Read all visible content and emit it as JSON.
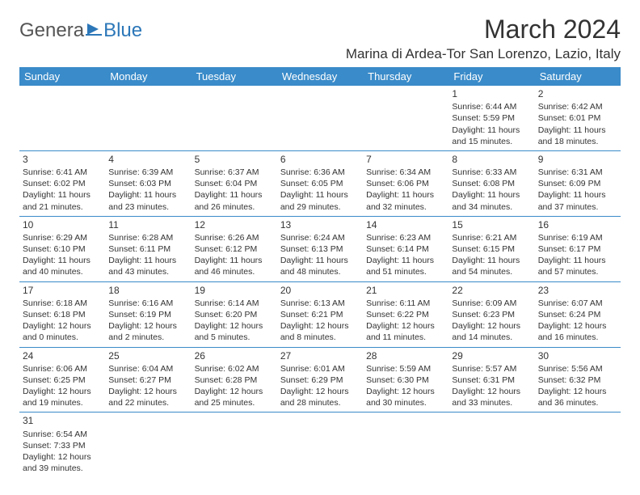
{
  "logo": {
    "general": "Genera",
    "blue": "Blue"
  },
  "title": "March 2024",
  "location": "Marina di Ardea-Tor San Lorenzo, Lazio, Italy",
  "colors": {
    "header_bg": "#3a8bc9",
    "header_text": "#ffffff",
    "border": "#3a8bc9",
    "logo_gray": "#555555",
    "logo_blue": "#2c77b8"
  },
  "weekdays": [
    "Sunday",
    "Monday",
    "Tuesday",
    "Wednesday",
    "Thursday",
    "Friday",
    "Saturday"
  ],
  "weeks": [
    [
      null,
      null,
      null,
      null,
      null,
      {
        "n": "1",
        "sr": "6:44 AM",
        "ss": "5:59 PM",
        "dl": "11 hours and 15 minutes."
      },
      {
        "n": "2",
        "sr": "6:42 AM",
        "ss": "6:01 PM",
        "dl": "11 hours and 18 minutes."
      }
    ],
    [
      {
        "n": "3",
        "sr": "6:41 AM",
        "ss": "6:02 PM",
        "dl": "11 hours and 21 minutes."
      },
      {
        "n": "4",
        "sr": "6:39 AM",
        "ss": "6:03 PM",
        "dl": "11 hours and 23 minutes."
      },
      {
        "n": "5",
        "sr": "6:37 AM",
        "ss": "6:04 PM",
        "dl": "11 hours and 26 minutes."
      },
      {
        "n": "6",
        "sr": "6:36 AM",
        "ss": "6:05 PM",
        "dl": "11 hours and 29 minutes."
      },
      {
        "n": "7",
        "sr": "6:34 AM",
        "ss": "6:06 PM",
        "dl": "11 hours and 32 minutes."
      },
      {
        "n": "8",
        "sr": "6:33 AM",
        "ss": "6:08 PM",
        "dl": "11 hours and 34 minutes."
      },
      {
        "n": "9",
        "sr": "6:31 AM",
        "ss": "6:09 PM",
        "dl": "11 hours and 37 minutes."
      }
    ],
    [
      {
        "n": "10",
        "sr": "6:29 AM",
        "ss": "6:10 PM",
        "dl": "11 hours and 40 minutes."
      },
      {
        "n": "11",
        "sr": "6:28 AM",
        "ss": "6:11 PM",
        "dl": "11 hours and 43 minutes."
      },
      {
        "n": "12",
        "sr": "6:26 AM",
        "ss": "6:12 PM",
        "dl": "11 hours and 46 minutes."
      },
      {
        "n": "13",
        "sr": "6:24 AM",
        "ss": "6:13 PM",
        "dl": "11 hours and 48 minutes."
      },
      {
        "n": "14",
        "sr": "6:23 AM",
        "ss": "6:14 PM",
        "dl": "11 hours and 51 minutes."
      },
      {
        "n": "15",
        "sr": "6:21 AM",
        "ss": "6:15 PM",
        "dl": "11 hours and 54 minutes."
      },
      {
        "n": "16",
        "sr": "6:19 AM",
        "ss": "6:17 PM",
        "dl": "11 hours and 57 minutes."
      }
    ],
    [
      {
        "n": "17",
        "sr": "6:18 AM",
        "ss": "6:18 PM",
        "dl": "12 hours and 0 minutes."
      },
      {
        "n": "18",
        "sr": "6:16 AM",
        "ss": "6:19 PM",
        "dl": "12 hours and 2 minutes."
      },
      {
        "n": "19",
        "sr": "6:14 AM",
        "ss": "6:20 PM",
        "dl": "12 hours and 5 minutes."
      },
      {
        "n": "20",
        "sr": "6:13 AM",
        "ss": "6:21 PM",
        "dl": "12 hours and 8 minutes."
      },
      {
        "n": "21",
        "sr": "6:11 AM",
        "ss": "6:22 PM",
        "dl": "12 hours and 11 minutes."
      },
      {
        "n": "22",
        "sr": "6:09 AM",
        "ss": "6:23 PM",
        "dl": "12 hours and 14 minutes."
      },
      {
        "n": "23",
        "sr": "6:07 AM",
        "ss": "6:24 PM",
        "dl": "12 hours and 16 minutes."
      }
    ],
    [
      {
        "n": "24",
        "sr": "6:06 AM",
        "ss": "6:25 PM",
        "dl": "12 hours and 19 minutes."
      },
      {
        "n": "25",
        "sr": "6:04 AM",
        "ss": "6:27 PM",
        "dl": "12 hours and 22 minutes."
      },
      {
        "n": "26",
        "sr": "6:02 AM",
        "ss": "6:28 PM",
        "dl": "12 hours and 25 minutes."
      },
      {
        "n": "27",
        "sr": "6:01 AM",
        "ss": "6:29 PM",
        "dl": "12 hours and 28 minutes."
      },
      {
        "n": "28",
        "sr": "5:59 AM",
        "ss": "6:30 PM",
        "dl": "12 hours and 30 minutes."
      },
      {
        "n": "29",
        "sr": "5:57 AM",
        "ss": "6:31 PM",
        "dl": "12 hours and 33 minutes."
      },
      {
        "n": "30",
        "sr": "5:56 AM",
        "ss": "6:32 PM",
        "dl": "12 hours and 36 minutes."
      }
    ],
    [
      {
        "n": "31",
        "sr": "6:54 AM",
        "ss": "7:33 PM",
        "dl": "12 hours and 39 minutes."
      },
      null,
      null,
      null,
      null,
      null,
      null
    ]
  ],
  "labels": {
    "sunrise": "Sunrise:",
    "sunset": "Sunset:",
    "daylight": "Daylight:"
  }
}
